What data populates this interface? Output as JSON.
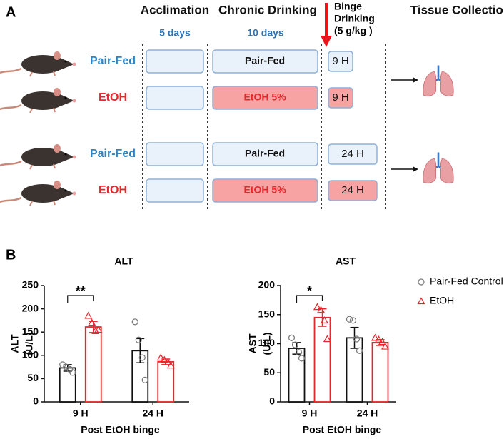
{
  "panel_a": {
    "label": "A",
    "headers": [
      "Acclimation",
      "Chronic Drinking",
      "Tissue Collection"
    ],
    "binge_header": [
      "Binge",
      "Drinking",
      "(5 g/kg )"
    ],
    "durations": [
      "5 days",
      "10 days"
    ],
    "rows": [
      {
        "group": "Pair-Fed",
        "chronic": "Pair-Fed",
        "binge": "9 H"
      },
      {
        "group": "EtOH",
        "chronic": "EtOH 5%",
        "binge": "9 H"
      },
      {
        "group": "Pair-Fed",
        "chronic": "Pair-Fed",
        "binge": "24 H"
      },
      {
        "group": "EtOH",
        "chronic": "EtOH 5%",
        "binge": "24 H"
      }
    ]
  },
  "panel_b": {
    "label": "B"
  },
  "chart_data": [
    {
      "type": "bar",
      "title": "ALT",
      "ylabel": [
        "ALT",
        "(U/L)"
      ],
      "xlabel": "Post EtOH binge",
      "categories": [
        "9 H",
        "24 H"
      ],
      "ylim": [
        0,
        250
      ],
      "yticks": [
        0,
        50,
        100,
        150,
        200,
        250
      ],
      "significance": [
        "**",
        null
      ],
      "series": [
        {
          "color": "#111111",
          "values": [
            73,
            110
          ],
          "errors": [
            7,
            26
          ],
          "points": [
            [
              80,
              75,
              70,
              63
            ],
            [
              172,
              133,
              95,
              47
            ]
          ]
        },
        {
          "color": "#e8262b",
          "values": [
            161,
            86
          ],
          "errors": [
            12,
            6
          ],
          "points": [
            [
              185,
              170,
              152,
              155
            ],
            [
              95,
              90,
              85,
              78
            ]
          ]
        }
      ]
    },
    {
      "type": "bar",
      "title": "AST",
      "ylabel": [
        "AST",
        "(U/L)"
      ],
      "xlabel": "Post EtOH binge",
      "categories": [
        "9 H",
        "24 H"
      ],
      "ylim": [
        0,
        200
      ],
      "yticks": [
        0,
        50,
        100,
        150,
        200
      ],
      "significance": [
        "*",
        null
      ],
      "series": [
        {
          "name": "Pair-Fed Control",
          "color": "#111111",
          "values": [
            92,
            110
          ],
          "errors": [
            10,
            18
          ],
          "points": [
            [
              110,
              98,
              85,
              75
            ],
            [
              142,
              140,
              108,
              88
            ]
          ]
        },
        {
          "name": "EtOH",
          "color": "#e8262b",
          "values": [
            145,
            102
          ],
          "errors": [
            15,
            5
          ],
          "points": [
            [
              163,
              158,
              140,
              108
            ],
            [
              110,
              107,
              103,
              95
            ]
          ]
        }
      ]
    }
  ]
}
